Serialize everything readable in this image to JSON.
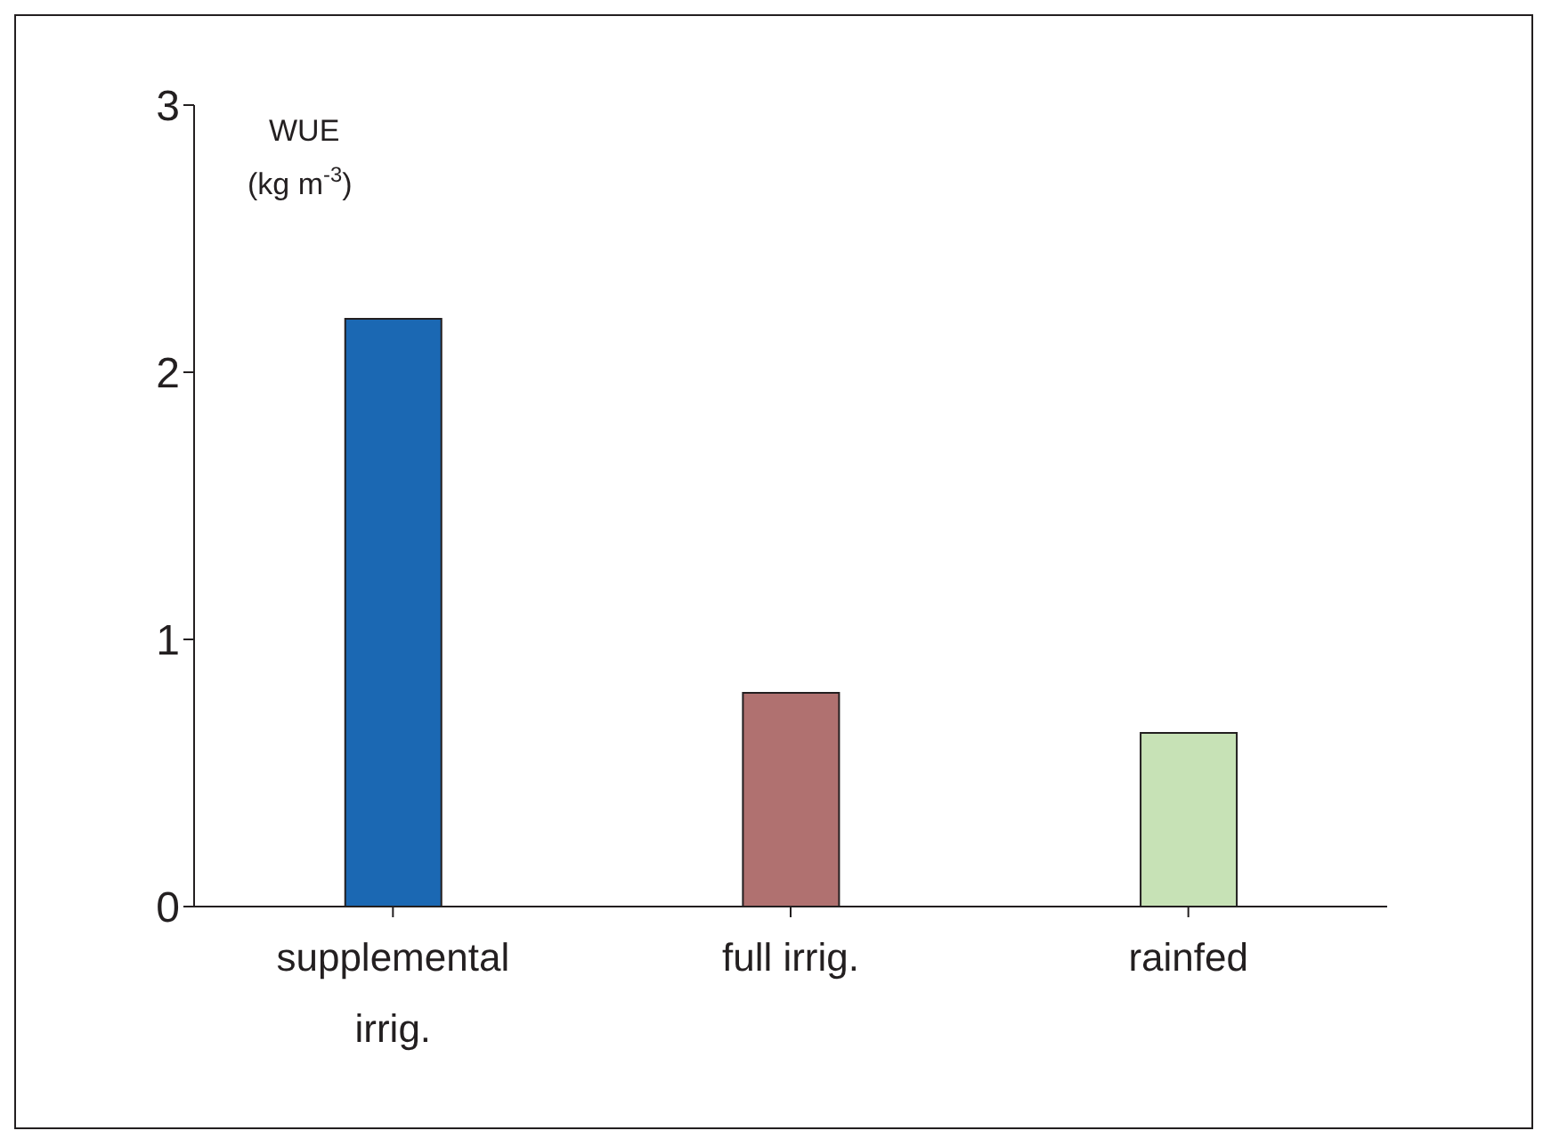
{
  "chart_data": {
    "type": "bar",
    "ylabel": "WUE (kg m$^{-3}$)",
    "categories": [
      "supplemental irrig.",
      "full irrig.",
      "rainfed"
    ],
    "values": [
      2.2,
      0.8,
      0.65
    ],
    "colors": [
      "#1b68b3",
      "#b07170",
      "#c7e2b6"
    ],
    "ylim": [
      0,
      3
    ],
    "yticks": [
      0,
      1,
      2,
      3
    ],
    "grid": false
  }
}
